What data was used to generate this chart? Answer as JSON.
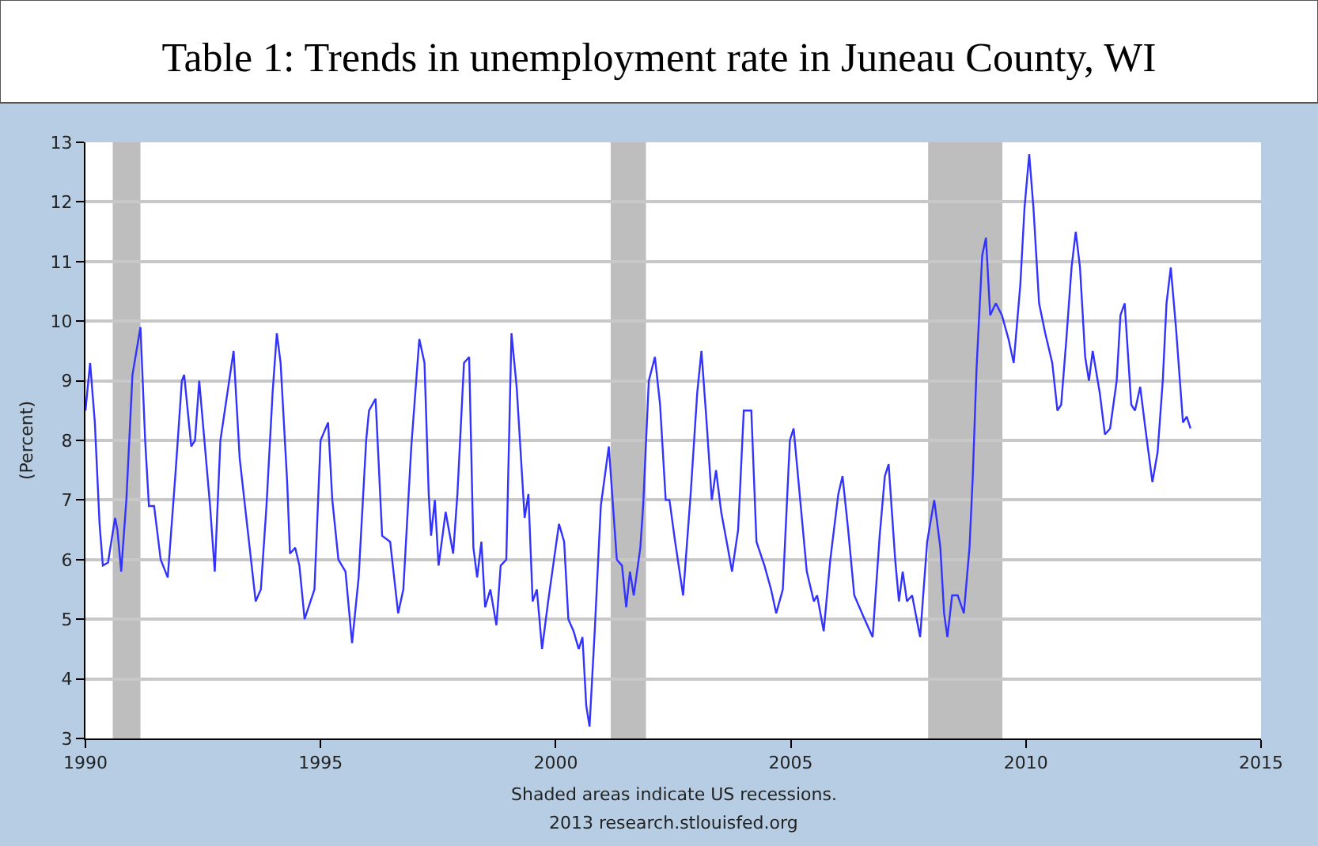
{
  "chart_data": {
    "type": "line",
    "title": "Table 1: Trends in unemployment rate in Juneau County, WI",
    "ylabel": "(Percent)",
    "x": [
      1990.0,
      1990.1,
      1990.2,
      1990.3,
      1990.37,
      1990.48,
      1990.63,
      1990.68,
      1990.76,
      1990.87,
      1991.0,
      1991.17,
      1991.27,
      1991.35,
      1991.46,
      1991.6,
      1991.75,
      1991.92,
      1992.05,
      1992.1,
      1992.25,
      1992.33,
      1992.42,
      1992.53,
      1992.65,
      1992.75,
      1992.87,
      1993.15,
      1993.28,
      1993.45,
      1993.62,
      1993.73,
      1993.85,
      1993.98,
      1994.07,
      1994.15,
      1994.29,
      1994.35,
      1994.46,
      1994.55,
      1994.66,
      1994.87,
      1995.0,
      1995.16,
      1995.25,
      1995.38,
      1995.53,
      1995.67,
      1995.81,
      1995.97,
      1996.03,
      1996.17,
      1996.31,
      1996.48,
      1996.65,
      1996.76,
      1996.93,
      1997.1,
      1997.21,
      1997.3,
      1997.35,
      1997.43,
      1997.51,
      1997.66,
      1997.82,
      1997.91,
      1998.05,
      1998.16,
      1998.25,
      1998.33,
      1998.42,
      1998.5,
      1998.61,
      1998.74,
      1998.83,
      1998.95,
      1999.06,
      1999.17,
      1999.34,
      1999.42,
      1999.51,
      1999.6,
      1999.71,
      1999.84,
      2000.07,
      2000.18,
      2000.27,
      2000.38,
      2000.49,
      2000.57,
      2000.65,
      2000.72,
      2000.83,
      2000.96,
      2001.13,
      2001.3,
      2001.41,
      2001.5,
      2001.58,
      2001.66,
      2001.8,
      2001.86,
      2001.98,
      2002.11,
      2002.22,
      2002.34,
      2002.42,
      2002.54,
      2002.71,
      2002.87,
      2003.01,
      2003.1,
      2003.21,
      2003.32,
      2003.41,
      2003.52,
      2003.66,
      2003.75,
      2003.88,
      2004.0,
      2004.16,
      2004.27,
      2004.44,
      2004.58,
      2004.69,
      2004.83,
      2004.98,
      2005.06,
      2005.2,
      2005.34,
      2005.49,
      2005.56,
      2005.7,
      2005.84,
      2006.01,
      2006.1,
      2006.22,
      2006.35,
      2006.57,
      2006.74,
      2006.89,
      2007.0,
      2007.08,
      2007.22,
      2007.3,
      2007.38,
      2007.47,
      2007.58,
      2007.75,
      2007.9,
      2008.05,
      2008.18,
      2008.26,
      2008.33,
      2008.43,
      2008.55,
      2008.68,
      2008.8,
      2008.87,
      2008.95,
      2009.07,
      2009.15,
      2009.24,
      2009.36,
      2009.49,
      2009.63,
      2009.74,
      2009.88,
      2009.97,
      2010.07,
      2010.16,
      2010.28,
      2010.41,
      2010.56,
      2010.67,
      2010.75,
      2010.86,
      2010.97,
      2011.06,
      2011.15,
      2011.26,
      2011.34,
      2011.42,
      2011.57,
      2011.68,
      2011.79,
      2011.93,
      2012.01,
      2012.1,
      2012.24,
      2012.32,
      2012.43,
      2012.54,
      2012.69,
      2012.8,
      2012.91,
      2012.99,
      2013.08,
      2013.19,
      2013.34,
      2013.42,
      2013.5
    ],
    "series": [
      {
        "color": "#3333ff",
        "values": [
          8.5,
          9.3,
          8.3,
          6.6,
          5.9,
          5.95,
          6.7,
          6.5,
          5.8,
          7.0,
          9.1,
          9.9,
          8.0,
          6.9,
          6.9,
          6.0,
          5.7,
          7.5,
          9.0,
          9.1,
          7.9,
          8.0,
          9.0,
          8.0,
          6.9,
          5.8,
          8.0,
          9.5,
          7.7,
          6.5,
          5.3,
          5.5,
          6.9,
          8.8,
          9.8,
          9.3,
          7.3,
          6.1,
          6.2,
          5.9,
          5.0,
          5.5,
          8.0,
          8.3,
          7.0,
          6.0,
          5.8,
          4.6,
          5.7,
          8.0,
          8.5,
          8.7,
          6.4,
          6.3,
          5.1,
          5.5,
          7.9,
          9.7,
          9.3,
          7.1,
          6.4,
          7.0,
          5.9,
          6.8,
          6.1,
          7.1,
          9.3,
          9.4,
          6.2,
          5.7,
          6.3,
          5.2,
          5.5,
          4.9,
          5.9,
          6.0,
          9.8,
          8.9,
          6.7,
          7.1,
          5.3,
          5.5,
          4.5,
          5.3,
          6.6,
          6.3,
          5.0,
          4.8,
          4.5,
          4.7,
          3.55,
          3.2,
          4.8,
          6.9,
          7.9,
          6.0,
          5.9,
          5.2,
          5.8,
          5.4,
          6.2,
          6.9,
          9.0,
          9.4,
          8.6,
          7.0,
          7.0,
          6.3,
          5.4,
          7.1,
          8.8,
          9.5,
          8.3,
          7.0,
          7.5,
          6.8,
          6.2,
          5.8,
          6.5,
          8.5,
          8.5,
          6.3,
          5.9,
          5.5,
          5.1,
          5.5,
          8.0,
          8.2,
          7.0,
          5.8,
          5.3,
          5.4,
          4.8,
          6.0,
          7.1,
          7.4,
          6.5,
          5.4,
          5.0,
          4.7,
          6.4,
          7.4,
          7.6,
          6.0,
          5.3,
          5.8,
          5.3,
          5.4,
          4.7,
          6.3,
          7.0,
          6.2,
          5.1,
          4.7,
          5.4,
          5.4,
          5.1,
          6.2,
          7.4,
          9.2,
          11.1,
          11.4,
          10.1,
          10.3,
          10.1,
          9.7,
          9.3,
          10.6,
          11.9,
          12.8,
          11.9,
          10.3,
          9.8,
          9.3,
          8.5,
          8.6,
          9.7,
          10.9,
          11.5,
          10.9,
          9.4,
          9.0,
          9.5,
          8.8,
          8.1,
          8.2,
          9.0,
          10.1,
          10.3,
          8.6,
          8.5,
          8.9,
          8.2,
          7.3,
          7.8,
          9.0,
          10.3,
          10.9,
          9.9,
          8.3,
          8.4,
          8.2
        ]
      }
    ],
    "xlim": [
      1990,
      2015
    ],
    "xticks": [
      1990,
      1995,
      2000,
      2005,
      2010,
      2015
    ],
    "ylim": [
      3,
      13
    ],
    "yticks": [
      3,
      4,
      5,
      6,
      7,
      8,
      9,
      10,
      11,
      12,
      13
    ],
    "grid": "y",
    "bands": [
      {
        "axis": "x",
        "from": 1990.58,
        "to": 1991.17,
        "color": "#bebebe"
      },
      {
        "axis": "x",
        "from": 2001.17,
        "to": 2001.92,
        "color": "#bebebe"
      },
      {
        "axis": "x",
        "from": 2007.92,
        "to": 2009.5,
        "color": "#bebebe"
      }
    ],
    "annotations": [
      "Shaded areas indicate US recessions.",
      "2013 research.stlouisfed.org"
    ]
  }
}
